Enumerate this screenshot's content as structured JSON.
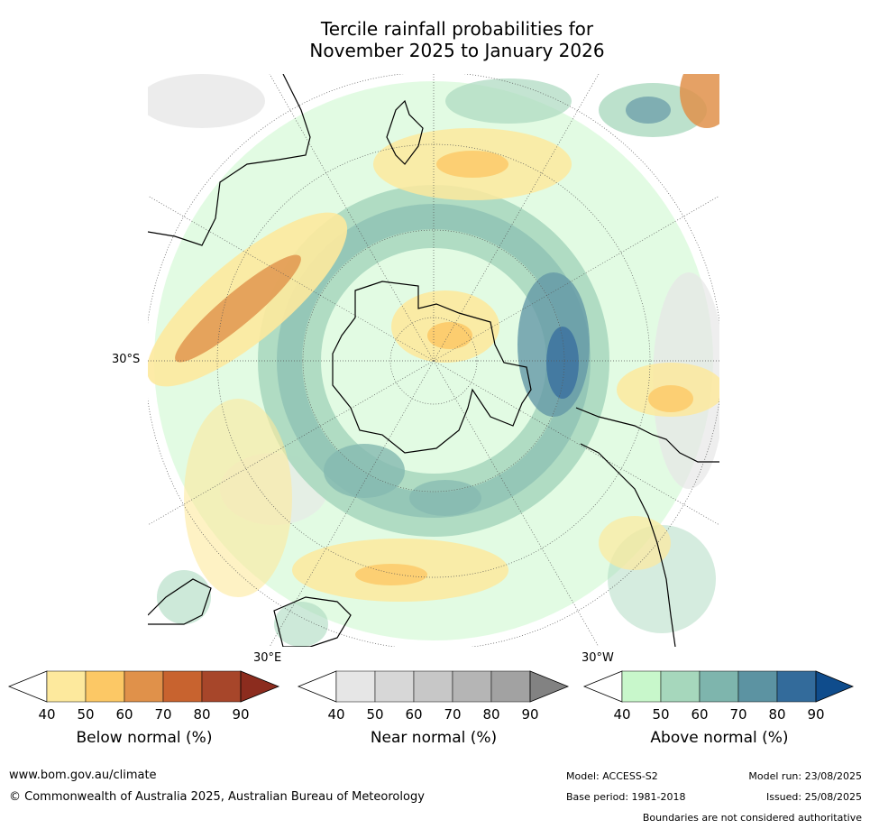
{
  "title_line1": "Tercile rainfall probabilities for",
  "title_line2": "November 2025 to January 2026",
  "map": {
    "lat_label": "30°S",
    "lon_label_east": "30°E",
    "lon_label_west": "30°W",
    "projection": "south polar stereographic",
    "colors": {
      "below": [
        "#fde99d",
        "#fcc865",
        "#e0914a",
        "#c8632f",
        "#a7462a",
        "#8c2c1e"
      ],
      "near": [
        "#e6e6e6",
        "#d7d7d7",
        "#c7c7c7",
        "#b5b5b5",
        "#a2a2a2",
        "#828282"
      ],
      "above": [
        "#c8f7cb",
        "#a6d7bc",
        "#7eb5ad",
        "#5c93a2",
        "#336b9b",
        "#0f4c8c"
      ]
    }
  },
  "colorbars": [
    {
      "name": "below",
      "label": "Below normal (%)",
      "ticks": [
        "40",
        "50",
        "60",
        "70",
        "80",
        "90"
      ]
    },
    {
      "name": "near",
      "label": "Near normal (%)",
      "ticks": [
        "40",
        "50",
        "60",
        "70",
        "80",
        "90"
      ]
    },
    {
      "name": "above",
      "label": "Above normal (%)",
      "ticks": [
        "40",
        "50",
        "60",
        "70",
        "80",
        "90"
      ]
    }
  ],
  "footer": {
    "website": "www.bom.gov.au/climate",
    "copyright": "© Commonwealth of Australia 2025, Australian Bureau of Meteorology",
    "model": "Model: ACCESS-S2",
    "base_period": "Base period: 1981-2018",
    "model_run": "Model run: 23/08/2025",
    "issued": "Issued: 25/08/2025",
    "disclaimer": "Boundaries are not considered authoritative"
  }
}
